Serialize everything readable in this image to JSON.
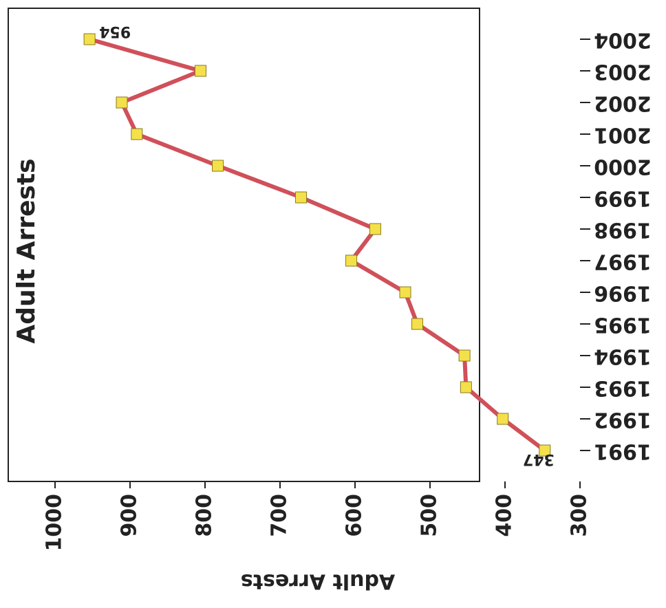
{
  "chart_data": {
    "type": "line",
    "title": "Adult Arrests",
    "y_label": "Adult Arrests",
    "categories": [
      "1991",
      "1992",
      "1993",
      "1994",
      "1995",
      "1996",
      "1997",
      "1998",
      "1999",
      "2000",
      "2001",
      "2002",
      "2003",
      "2004"
    ],
    "series": [
      {
        "name": "Adult Arrests",
        "color": "#d0505a",
        "marker_color": "#f4e04a",
        "values": [
          347,
          403,
          452,
          454,
          517,
          533,
          605,
          573,
          672,
          783,
          891,
          911,
          806,
          954
        ]
      }
    ],
    "labeled_points": [
      0,
      13
    ],
    "ylim": [
      1000,
      300
    ],
    "yticks": [
      1000,
      900,
      800,
      700,
      600,
      500,
      400,
      300
    ],
    "grid": false
  }
}
